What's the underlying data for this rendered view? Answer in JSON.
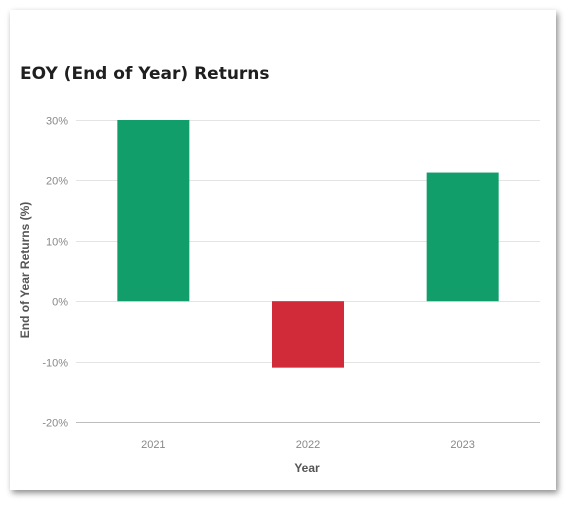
{
  "chart_data": {
    "type": "bar",
    "title": "EOY (End of Year) Returns",
    "xlabel": "Year",
    "ylabel": "End of Year Returns (%)",
    "categories": [
      "2021",
      "2022",
      "2023"
    ],
    "values": [
      30,
      -11,
      21.3
    ],
    "ylim": [
      -20,
      30
    ],
    "yticks": [
      -20,
      -10,
      0,
      10,
      20,
      30
    ],
    "ytick_labels": [
      "-20%",
      "-10%",
      "0%",
      "10%",
      "20%",
      "30%"
    ],
    "colors": {
      "positive": "#119e6a",
      "negative": "#d12a38"
    },
    "grid": true,
    "legend": "none"
  }
}
